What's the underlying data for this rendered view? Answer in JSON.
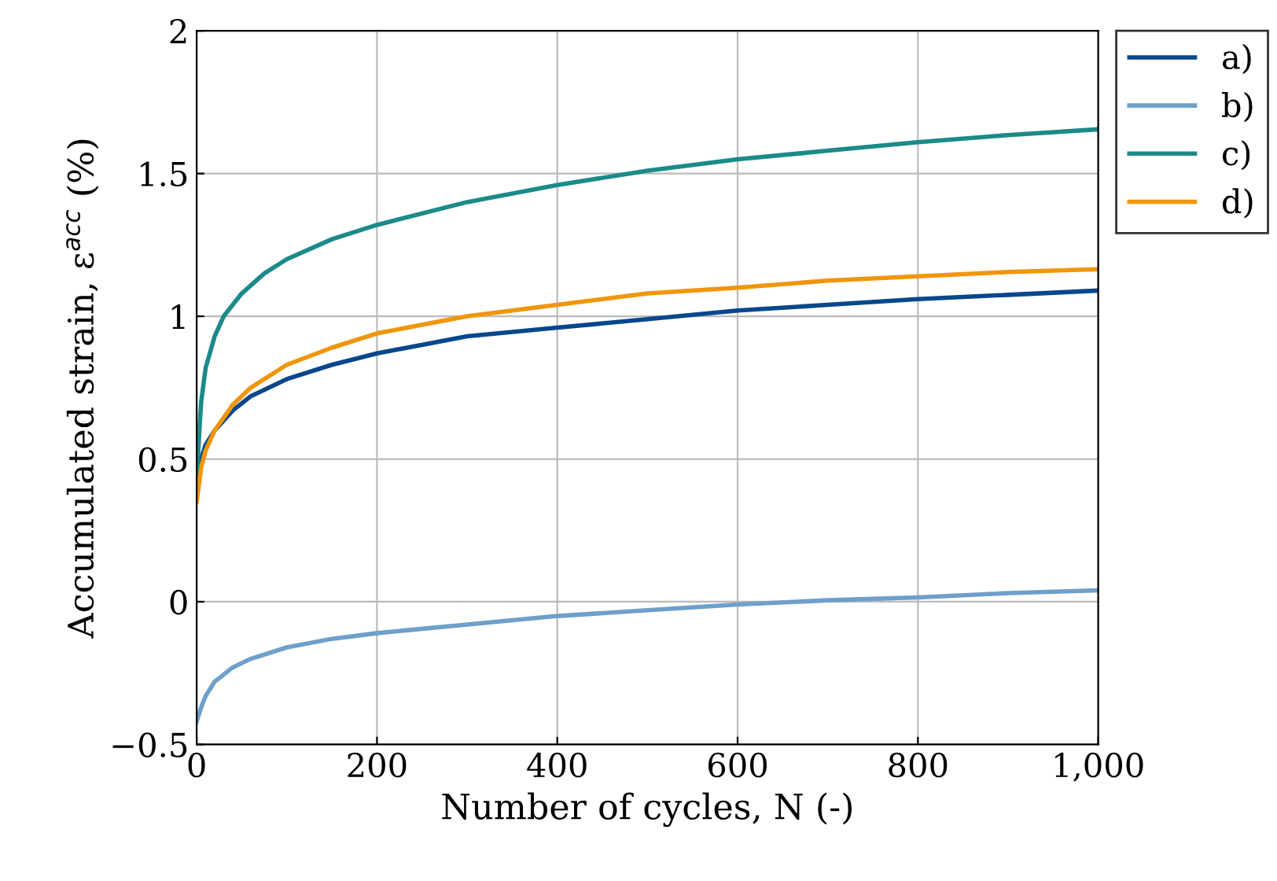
{
  "chart_data": {
    "type": "line",
    "xlabel": "Number of cycles, N (-)",
    "ylabel": "Accumulated strain, ε$^{acc}$ (%)",
    "xlim": [
      0,
      1000
    ],
    "ylim": [
      -0.5,
      2
    ],
    "xticks": [
      0,
      200,
      400,
      600,
      800,
      {
        "value": 1000,
        "label": "1,000"
      }
    ],
    "yticks": [
      {
        "value": -0.5,
        "label": "−0.5"
      },
      0,
      0.5,
      1,
      1.5,
      2
    ],
    "grid": true,
    "legend": "top right",
    "marker": "none",
    "line_style": "solid",
    "series": [
      {
        "name": "a)",
        "color": "#08478c",
        "x": [
          0,
          5,
          10,
          20,
          40,
          60,
          100,
          150,
          200,
          300,
          400,
          500,
          600,
          700,
          800,
          900,
          1000
        ],
        "values": [
          0.42,
          0.5,
          0.55,
          0.6,
          0.67,
          0.72,
          0.78,
          0.83,
          0.87,
          0.93,
          0.96,
          0.99,
          1.02,
          1.04,
          1.06,
          1.075,
          1.09
        ]
      },
      {
        "name": "b)",
        "color": "#6f9fcb",
        "x": [
          0,
          5,
          10,
          20,
          40,
          60,
          100,
          150,
          200,
          300,
          400,
          500,
          600,
          700,
          800,
          900,
          1000
        ],
        "values": [
          -0.42,
          -0.37,
          -0.33,
          -0.28,
          -0.23,
          -0.2,
          -0.16,
          -0.13,
          -0.11,
          -0.08,
          -0.05,
          -0.03,
          -0.01,
          0.005,
          0.015,
          0.03,
          0.04
        ]
      },
      {
        "name": "c)",
        "color": "#1b8a8a",
        "x": [
          0,
          3,
          5,
          10,
          20,
          30,
          50,
          75,
          100,
          150,
          200,
          300,
          400,
          500,
          600,
          700,
          800,
          900,
          1000
        ],
        "values": [
          0.42,
          0.6,
          0.7,
          0.82,
          0.93,
          1.0,
          1.08,
          1.15,
          1.2,
          1.27,
          1.32,
          1.4,
          1.46,
          1.51,
          1.55,
          1.58,
          1.61,
          1.635,
          1.655
        ]
      },
      {
        "name": "d)",
        "color": "#f0960c",
        "x": [
          0,
          5,
          10,
          20,
          40,
          60,
          100,
          150,
          200,
          300,
          400,
          500,
          600,
          700,
          800,
          900,
          1000
        ],
        "values": [
          0.35,
          0.47,
          0.53,
          0.6,
          0.69,
          0.75,
          0.83,
          0.89,
          0.94,
          1.0,
          1.04,
          1.08,
          1.1,
          1.125,
          1.14,
          1.155,
          1.165
        ]
      }
    ]
  }
}
